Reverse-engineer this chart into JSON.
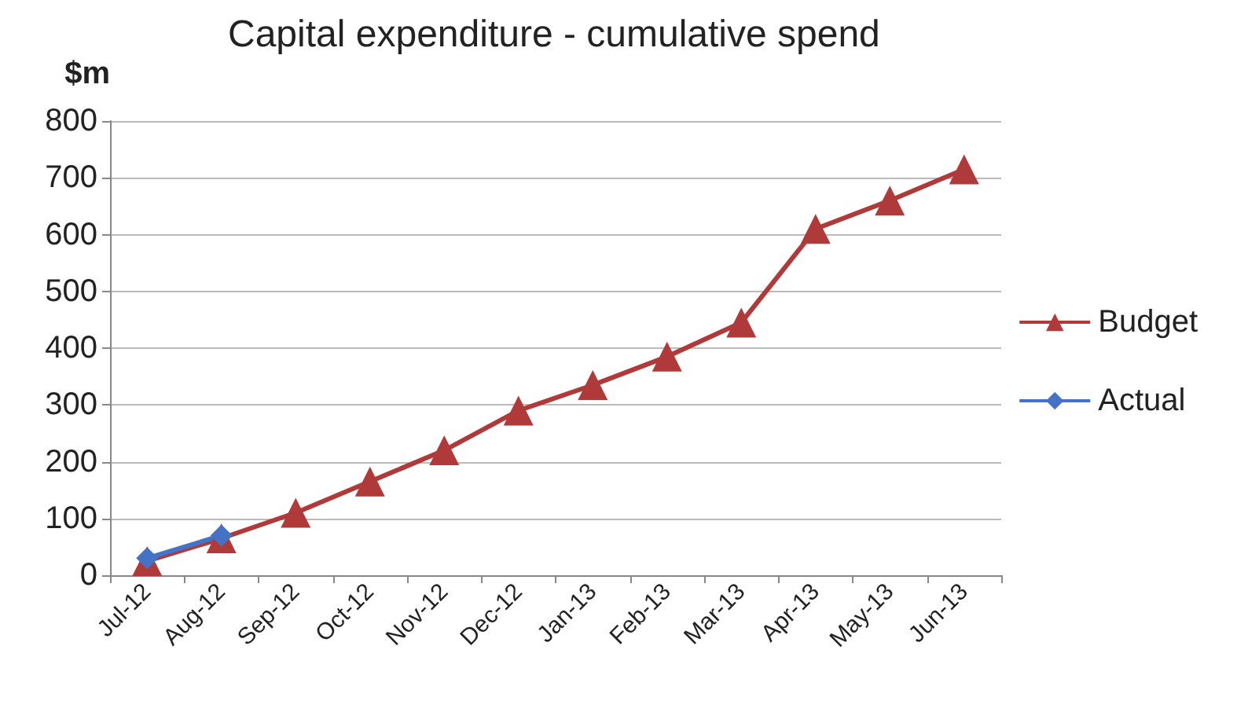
{
  "chart_data": {
    "type": "line",
    "title": "Capital expenditure - cumulative spend",
    "ylabel": "$m",
    "categories": [
      "Jul-12",
      "Aug-12",
      "Sep-12",
      "Oct-12",
      "Nov-12",
      "Dec-12",
      "Jan-13",
      "Feb-13",
      "Mar-13",
      "Apr-13",
      "May-13",
      "Jun-13"
    ],
    "series": [
      {
        "name": "Budget",
        "color": "#b03a3a",
        "marker": "triangle",
        "values": [
          25,
          65,
          110,
          165,
          220,
          290,
          335,
          385,
          445,
          610,
          660,
          715
        ]
      },
      {
        "name": "Actual",
        "color": "#4472c4",
        "marker": "diamond",
        "values": [
          30,
          70,
          null,
          null,
          null,
          null,
          null,
          null,
          null,
          null,
          null,
          null
        ]
      }
    ],
    "ylim": [
      0,
      800
    ],
    "yticks": [
      0,
      100,
      200,
      300,
      400,
      500,
      600,
      700,
      800
    ],
    "grid": "y",
    "legend": "right",
    "line_style": "solid"
  }
}
